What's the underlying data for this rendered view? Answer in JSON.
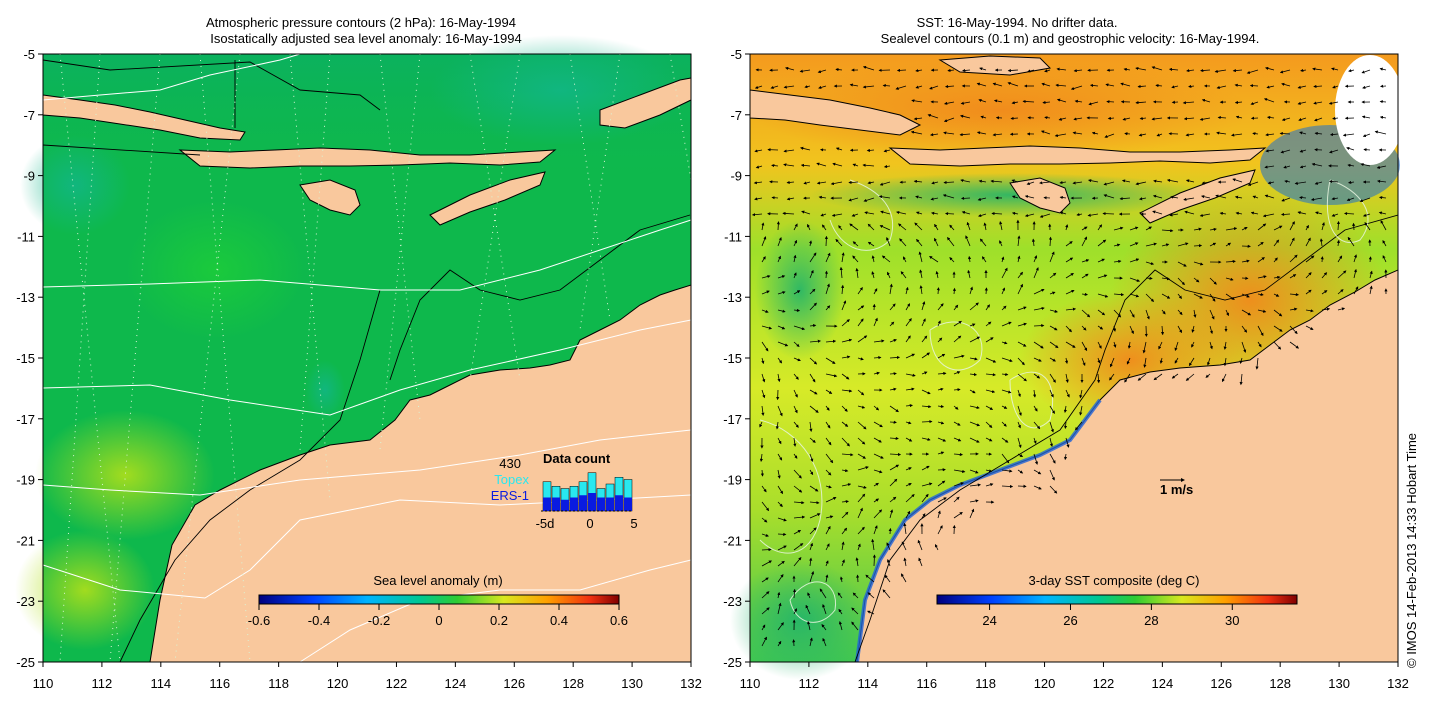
{
  "left_panel": {
    "title_line1": "Atmospheric pressure contours (2 hPa): 16-May-1994",
    "title_line2": "Isostatically adjusted sea level anomaly: 16-May-1994",
    "x_ticks": [
      "110",
      "112",
      "114",
      "116",
      "118",
      "120",
      "122",
      "124",
      "126",
      "128",
      "130",
      "132"
    ],
    "y_ticks": [
      "-5",
      "-7",
      "-9",
      "-11",
      "-13",
      "-15",
      "-17",
      "-19",
      "-21",
      "-23",
      "-25"
    ],
    "colorbar": {
      "label": "Sea level anomaly (m)",
      "ticks": [
        "-0.6",
        "-0.4",
        "-0.2",
        "0",
        "0.2",
        "0.4",
        "0.6"
      ],
      "range": [
        -0.6,
        0.6
      ]
    },
    "data_count": {
      "title": "Data count",
      "max_value": "430",
      "series_a": "Topex",
      "series_b": "ERS-1",
      "x_labels": [
        "-5d",
        "0",
        "5"
      ],
      "topex_bars": [
        0.65,
        0.55,
        0.5,
        0.55,
        0.65,
        0.85,
        0.5,
        0.6,
        0.75,
        0.7
      ],
      "ers_bars": [
        0.3,
        0.3,
        0.25,
        0.3,
        0.35,
        0.4,
        0.3,
        0.3,
        0.35,
        0.3
      ]
    },
    "colors": {
      "sea": "#0eb84c",
      "land": "#f9c89d",
      "accent_topex": "#29e8ef",
      "accent_ers": "#0a1be0"
    }
  },
  "right_panel": {
    "title_line1": "SST: 16-May-1994. No drifter data.",
    "title_line2": "Sealevel contours (0.1 m) and geostrophic velocity: 16-May-1994.",
    "x_ticks": [
      "110",
      "112",
      "114",
      "116",
      "118",
      "120",
      "122",
      "124",
      "126",
      "128",
      "130",
      "132"
    ],
    "y_ticks": [
      "-5",
      "-7",
      "-9",
      "-11",
      "-13",
      "-15",
      "-17",
      "-19",
      "-21",
      "-23",
      "-25"
    ],
    "colorbar": {
      "label": "3-day SST composite (deg C)",
      "ticks": [
        "24",
        "26",
        "28",
        "30"
      ],
      "range": [
        22.7,
        31.6
      ]
    },
    "velocity_scale_label": "1 m/s",
    "colors": {
      "warm": "#f7a21f",
      "mid": "#cfe82a",
      "cool": "#17b86a",
      "land": "#f9c89d"
    }
  },
  "credit": "© IMOS 14-Feb-2013 14:33 Hobart Time"
}
